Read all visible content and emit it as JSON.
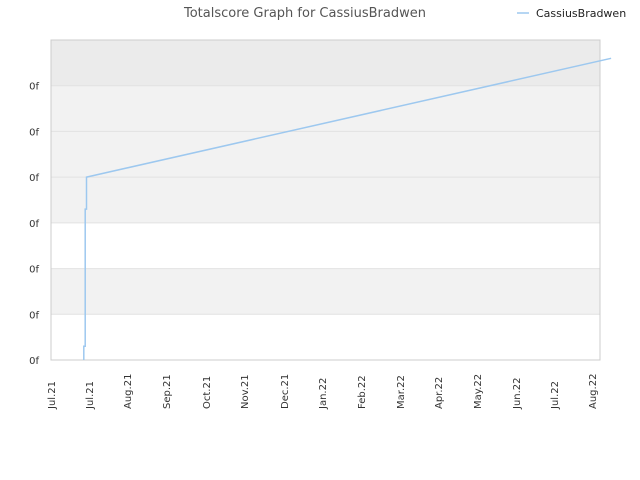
{
  "chart_data": {
    "type": "line",
    "title": "Totalscore Graph for CassiusBradwen",
    "xlabel": "",
    "ylabel": "",
    "x_tick_labels": [
      "Jul.21",
      "Jul.21",
      "Aug.21",
      "Sep.21",
      "Oct.21",
      "Nov.21",
      "Dec.21",
      "Jan.22",
      "Feb.22",
      "Mar.22",
      "Apr.22",
      "May.22",
      "Jun.22",
      "Jul.22",
      "Aug.22"
    ],
    "y_tick_labels": [
      "0f",
      "0f",
      "0f",
      "0f",
      "0f",
      "0f",
      "0f"
    ],
    "grid": true,
    "legend": {
      "position": "top-right",
      "entries": [
        "CassiusBradwen"
      ]
    },
    "colors": {
      "series": "#9dc8ef",
      "band_dark": "#f2f2f2",
      "band_light": "#ffffff",
      "band_top": "#ebebeb",
      "grid": "#e2e2e2",
      "axis": "#cccccc"
    },
    "ylim": [
      0,
      7
    ],
    "series": [
      {
        "name": "CassiusBradwen",
        "points": [
          {
            "x": "2021-07-25",
            "y": 0
          },
          {
            "x": "2021-07-25",
            "y": 0.3
          },
          {
            "x": "2021-07-26",
            "y": 0.3
          },
          {
            "x": "2021-07-26",
            "y": 3.3
          },
          {
            "x": "2021-07-27",
            "y": 3.3
          },
          {
            "x": "2021-07-27",
            "y": 4
          },
          {
            "x": "2022-08-15",
            "y": 6.6
          }
        ]
      }
    ]
  }
}
